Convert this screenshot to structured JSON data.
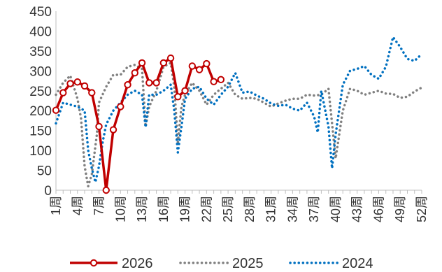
{
  "chart_data": {
    "type": "line",
    "ylim": [
      0,
      450
    ],
    "yticks": [
      0,
      50,
      100,
      150,
      200,
      250,
      300,
      350,
      400,
      450
    ],
    "x_tick_labels": [
      "1周",
      "4周",
      "7周",
      "10周",
      "13周",
      "16周",
      "19周",
      "22周",
      "25周",
      "28周",
      "31周",
      "34周",
      "37周",
      "40周",
      "43周",
      "46周",
      "49周",
      "52周"
    ],
    "x_tick_weeks": [
      1,
      4,
      7,
      10,
      13,
      16,
      19,
      22,
      25,
      28,
      31,
      34,
      37,
      40,
      43,
      46,
      49,
      52
    ],
    "grid": false,
    "legend_position": "bottom",
    "series": [
      {
        "name": "2026",
        "color": "#c00000",
        "style": "solid-markers",
        "points": [
          [
            1,
            201
          ],
          [
            2,
            245
          ],
          [
            3,
            268
          ],
          [
            4,
            272
          ],
          [
            5,
            262
          ],
          [
            6,
            245
          ],
          [
            7,
            160
          ],
          [
            8,
            0
          ],
          [
            9,
            152
          ],
          [
            10,
            210
          ],
          [
            11,
            265
          ],
          [
            12,
            295
          ],
          [
            13,
            320
          ],
          [
            14,
            270
          ],
          [
            15,
            270
          ],
          [
            16,
            320
          ],
          [
            17,
            332
          ],
          [
            18,
            235
          ],
          [
            19,
            250
          ],
          [
            20,
            312
          ],
          [
            21,
            303
          ],
          [
            22,
            318
          ],
          [
            23,
            273
          ],
          [
            24,
            278
          ]
        ]
      },
      {
        "name": "2025",
        "color": "#808080",
        "style": "dotted",
        "points": [
          [
            1,
            240
          ],
          [
            2,
            270
          ],
          [
            3,
            288
          ],
          [
            4,
            230
          ],
          [
            4.5,
            180
          ],
          [
            5,
            60
          ],
          [
            5.5,
            10
          ],
          [
            6,
            40
          ],
          [
            6.7,
            140
          ],
          [
            7,
            220
          ],
          [
            8,
            260
          ],
          [
            9,
            290
          ],
          [
            10,
            290
          ],
          [
            11,
            310
          ],
          [
            12,
            315
          ],
          [
            13,
            305
          ],
          [
            13.5,
            160
          ],
          [
            14,
            210
          ],
          [
            15,
            250
          ],
          [
            16,
            310
          ],
          [
            17,
            320
          ],
          [
            17.5,
            260
          ],
          [
            18,
            120
          ],
          [
            18.5,
            210
          ],
          [
            19,
            240
          ],
          [
            20,
            270
          ],
          [
            21,
            250
          ],
          [
            22,
            215
          ],
          [
            23,
            240
          ],
          [
            24,
            255
          ],
          [
            25,
            270
          ],
          [
            26,
            240
          ],
          [
            27,
            230
          ],
          [
            28,
            232
          ],
          [
            29,
            230
          ],
          [
            30,
            220
          ],
          [
            31,
            210
          ],
          [
            32,
            218
          ],
          [
            33,
            225
          ],
          [
            34,
            230
          ],
          [
            35,
            230
          ],
          [
            36,
            240
          ],
          [
            37,
            238
          ],
          [
            38,
            240
          ],
          [
            39,
            255
          ],
          [
            40,
            80
          ],
          [
            41,
            200
          ],
          [
            42,
            255
          ],
          [
            43,
            250
          ],
          [
            44,
            240
          ],
          [
            45,
            245
          ],
          [
            46,
            250
          ],
          [
            47,
            243
          ],
          [
            48,
            242
          ],
          [
            49,
            232
          ],
          [
            50,
            235
          ],
          [
            51,
            248
          ],
          [
            52,
            258
          ]
        ]
      },
      {
        "name": "2024",
        "color": "#0070c0",
        "style": "dotted",
        "points": [
          [
            1,
            168
          ],
          [
            2,
            220
          ],
          [
            3,
            215
          ],
          [
            4,
            210
          ],
          [
            5,
            200
          ],
          [
            5.5,
            100
          ],
          [
            6,
            55
          ],
          [
            6.5,
            20
          ],
          [
            7,
            60
          ],
          [
            7.5,
            120
          ],
          [
            8,
            165
          ],
          [
            9,
            200
          ],
          [
            10,
            220
          ],
          [
            11,
            240
          ],
          [
            12,
            250
          ],
          [
            13,
            240
          ],
          [
            13.5,
            158
          ],
          [
            14,
            240
          ],
          [
            15,
            240
          ],
          [
            16,
            250
          ],
          [
            17,
            265
          ],
          [
            17.5,
            200
          ],
          [
            18,
            95
          ],
          [
            18.5,
            160
          ],
          [
            19,
            230
          ],
          [
            20,
            255
          ],
          [
            21,
            260
          ],
          [
            22,
            230
          ],
          [
            23,
            215
          ],
          [
            24,
            240
          ],
          [
            25,
            260
          ],
          [
            26,
            295
          ],
          [
            27,
            245
          ],
          [
            28,
            248
          ],
          [
            29,
            238
          ],
          [
            30,
            230
          ],
          [
            31,
            218
          ],
          [
            32,
            212
          ],
          [
            33,
            215
          ],
          [
            34,
            205
          ],
          [
            35,
            200
          ],
          [
            36,
            220
          ],
          [
            37,
            185
          ],
          [
            37.5,
            145
          ],
          [
            38,
            250
          ],
          [
            39,
            160
          ],
          [
            39.5,
            55
          ],
          [
            40,
            140
          ],
          [
            41,
            265
          ],
          [
            42,
            300
          ],
          [
            43,
            305
          ],
          [
            44,
            312
          ],
          [
            45,
            290
          ],
          [
            46,
            280
          ],
          [
            47,
            310
          ],
          [
            48,
            385
          ],
          [
            49,
            360
          ],
          [
            50,
            330
          ],
          [
            51,
            325
          ],
          [
            52,
            342
          ]
        ]
      }
    ]
  }
}
